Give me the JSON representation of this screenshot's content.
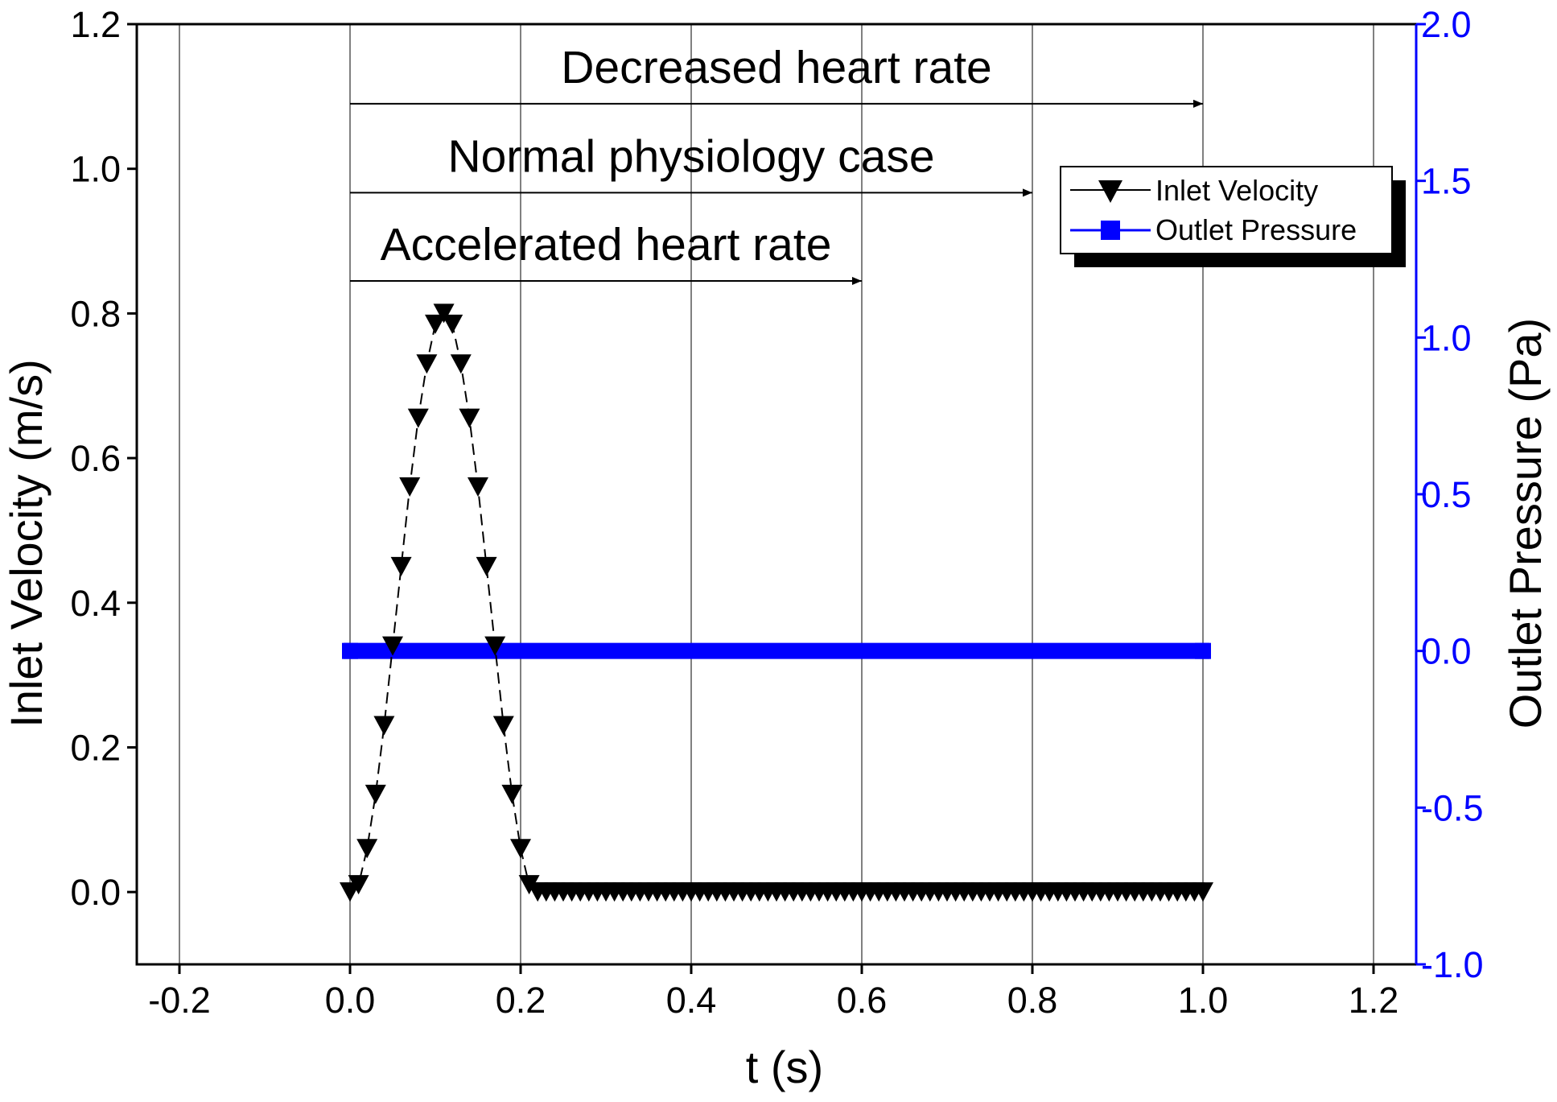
{
  "chart_data": {
    "type": "line",
    "xlabel": "t (s)",
    "ylabel_left": "Inlet Velocity (m/s)",
    "ylabel_right": "Outlet Pressure (Pa)",
    "xlim": [
      -0.25,
      1.25
    ],
    "ylim_left": [
      -0.1,
      1.2
    ],
    "ylim_right": [
      -1.0,
      2.0
    ],
    "grid": "vertical",
    "xticks": [
      "-0.2",
      "0.0",
      "0.2",
      "0.4",
      "0.6",
      "0.8",
      "1.0",
      "1.2"
    ],
    "yticks_left": [
      "0.0",
      "0.2",
      "0.4",
      "0.6",
      "0.8",
      "1.0",
      "1.2"
    ],
    "yticks_right": [
      "-1.0",
      "-0.5",
      "0.0",
      "0.5",
      "1.0",
      "1.5",
      "2.0"
    ],
    "annotations": [
      {
        "text": "Decreased heart rate",
        "x_start": 0.0,
        "x_end": 1.0,
        "y": 1.09
      },
      {
        "text": "Normal physiology case",
        "x_start": 0.0,
        "x_end": 0.8,
        "y": 0.967
      },
      {
        "text": "Accelerated heart rate",
        "x_start": 0.0,
        "x_end": 0.6,
        "y": 0.845
      }
    ],
    "legend": {
      "position": "top-right",
      "entries": [
        "Inlet Velocity",
        "Outlet Pressure"
      ]
    },
    "series": [
      {
        "name": "Inlet Velocity",
        "axis": "left",
        "marker": "triangle-down",
        "color": "#000000",
        "x": [
          0.0,
          0.01,
          0.02,
          0.03,
          0.04,
          0.05,
          0.06,
          0.07,
          0.08,
          0.09,
          0.1,
          0.11,
          0.12,
          0.13,
          0.14,
          0.15,
          0.16,
          0.17,
          0.18,
          0.19,
          0.2,
          0.21,
          0.22,
          0.23,
          0.24,
          0.25,
          0.26,
          0.27,
          0.28,
          0.29,
          0.3,
          0.31,
          0.32,
          0.33,
          0.34,
          0.35,
          0.36,
          0.37,
          0.38,
          0.39,
          0.4,
          0.41,
          0.42,
          0.43,
          0.44,
          0.45,
          0.46,
          0.47,
          0.48,
          0.49,
          0.5,
          0.51,
          0.52,
          0.53,
          0.54,
          0.55,
          0.56,
          0.57,
          0.58,
          0.59,
          0.6,
          0.61,
          0.62,
          0.63,
          0.64,
          0.65,
          0.66,
          0.67,
          0.68,
          0.69,
          0.7,
          0.71,
          0.72,
          0.73,
          0.74,
          0.75,
          0.76,
          0.77,
          0.78,
          0.79,
          0.8,
          0.81,
          0.82,
          0.83,
          0.84,
          0.85,
          0.86,
          0.87,
          0.88,
          0.89,
          0.9,
          0.91,
          0.92,
          0.93,
          0.94,
          0.95,
          0.96,
          0.97,
          0.98,
          0.99,
          1.0
        ],
        "y": [
          0.0,
          0.01,
          0.06,
          0.135,
          0.23,
          0.34,
          0.45,
          0.56,
          0.655,
          0.73,
          0.785,
          0.8,
          0.785,
          0.73,
          0.655,
          0.56,
          0.45,
          0.34,
          0.23,
          0.135,
          0.06,
          0.01,
          0.0,
          0.0,
          0.0,
          0.0,
          0.0,
          0.0,
          0.0,
          0.0,
          0.0,
          0.0,
          0.0,
          0.0,
          0.0,
          0.0,
          0.0,
          0.0,
          0.0,
          0.0,
          0.0,
          0.0,
          0.0,
          0.0,
          0.0,
          0.0,
          0.0,
          0.0,
          0.0,
          0.0,
          0.0,
          0.0,
          0.0,
          0.0,
          0.0,
          0.0,
          0.0,
          0.0,
          0.0,
          0.0,
          0.0,
          0.0,
          0.0,
          0.0,
          0.0,
          0.0,
          0.0,
          0.0,
          0.0,
          0.0,
          0.0,
          0.0,
          0.0,
          0.0,
          0.0,
          0.0,
          0.0,
          0.0,
          0.0,
          0.0,
          0.0,
          0.0,
          0.0,
          0.0,
          0.0,
          0.0,
          0.0,
          0.0,
          0.0,
          0.0,
          0.0,
          0.0,
          0.0,
          0.0,
          0.0,
          0.0,
          0.0,
          0.0,
          0.0,
          0.0,
          0.0
        ]
      },
      {
        "name": "Outlet Pressure",
        "axis": "right",
        "marker": "square",
        "color": "#0000ff",
        "x": [
          0.0,
          1.0
        ],
        "y": [
          0.0,
          0.0
        ]
      }
    ]
  }
}
